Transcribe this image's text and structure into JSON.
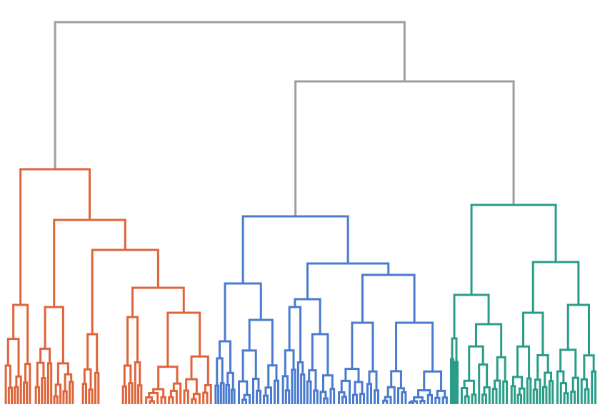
{
  "diagram": {
    "type": "dendrogram",
    "orientation": "top-down",
    "clusters": [
      {
        "id": "cluster-1",
        "color": "#e0643a"
      },
      {
        "id": "cluster-2",
        "color": "#4a7bcf"
      },
      {
        "id": "cluster-3",
        "color": "#2a9d88"
      }
    ],
    "link_color_above_threshold": "#9e9e9e",
    "background": "#ffffff"
  }
}
